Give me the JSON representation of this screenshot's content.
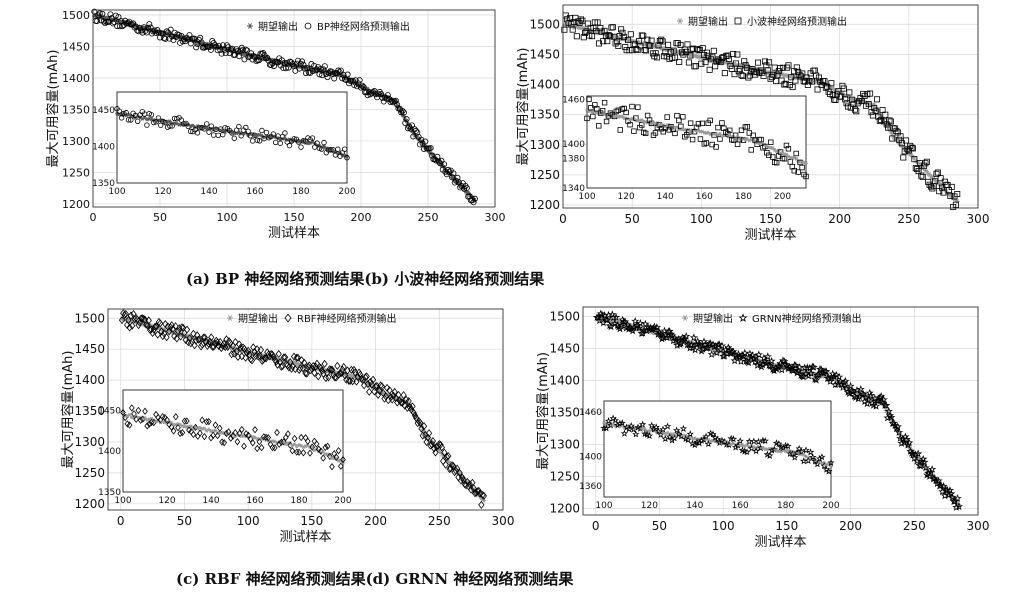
{
  "captions": [
    "(a) BP 神经网络预测结果(b) 小波神经网络预测结果",
    "(c) RBF 神经网络预测结果(d) GRNN 神经网络预测结果"
  ],
  "chart_data": [
    {
      "id": "a",
      "type": "scatter",
      "xlabel": "测试样本",
      "ylabel": "最大可用容量(mAh)",
      "xlim": [
        0,
        300
      ],
      "ylim": [
        1195,
        1508
      ],
      "xticks": [
        0,
        50,
        100,
        150,
        200,
        250,
        300
      ],
      "yticks": [
        1200,
        1250,
        1300,
        1350,
        1400,
        1450,
        1500
      ],
      "grid": true,
      "legend_position": "top-right",
      "series": [
        {
          "name": "期望输出",
          "marker": "asterisk",
          "color": "#555555",
          "x": [
            0,
            285
          ],
          "y": [
            1500,
            1205
          ],
          "keypoints_x": [
            0,
            10,
            40,
            100,
            150,
            185,
            210,
            225,
            240,
            265,
            285
          ],
          "keypoints_y": [
            1500,
            1495,
            1478,
            1445,
            1420,
            1405,
            1375,
            1365,
            1310,
            1250,
            1205
          ]
        },
        {
          "name": "BP神经网络预测输出",
          "marker": "circle",
          "color": "#000000",
          "x_range": [
            2,
            285
          ],
          "noise": 9
        }
      ],
      "inset": {
        "xlim": [
          100,
          200
        ],
        "ylim": [
          1350,
          1475
        ],
        "xticks": [
          100,
          120,
          140,
          160,
          180,
          200
        ],
        "yticks": [
          1350,
          1400,
          1450
        ]
      }
    },
    {
      "id": "b",
      "type": "scatter",
      "xlabel": "测试样本",
      "ylabel": "最大可用容量(mAh)",
      "xlim": [
        0,
        300
      ],
      "ylim": [
        1195,
        1532
      ],
      "xticks": [
        0,
        50,
        100,
        150,
        200,
        250,
        300
      ],
      "yticks": [
        1200,
        1250,
        1300,
        1350,
        1400,
        1450,
        1500
      ],
      "grid": true,
      "legend_position": "top-right",
      "series": [
        {
          "name": "期望输出",
          "marker": "asterisk",
          "color": "#999999",
          "keypoints_x": [
            0,
            10,
            40,
            100,
            150,
            185,
            210,
            225,
            240,
            265,
            285
          ],
          "keypoints_y": [
            1500,
            1495,
            1478,
            1445,
            1420,
            1405,
            1375,
            1365,
            1310,
            1250,
            1205
          ]
        },
        {
          "name": "小波神经网络预测输出",
          "marker": "square",
          "color": "#000000",
          "x_range": [
            2,
            285
          ],
          "noise": 18
        }
      ],
      "inset": {
        "xlim": [
          100,
          212
        ],
        "ylim": [
          1340,
          1465
        ],
        "xticks": [
          100,
          120,
          140,
          160,
          180,
          200
        ],
        "yticks": [
          1340,
          1380,
          1400,
          1460
        ],
        "ytick_labels": [
          "1340",
          "1380",
          "1400",
          "1460"
        ]
      }
    },
    {
      "id": "c",
      "type": "scatter",
      "xlabel": "测试样本",
      "ylabel": "最大可用容量(mAh)",
      "xlim": [
        -10,
        300
      ],
      "ylim": [
        1190,
        1515
      ],
      "xticks": [
        0,
        50,
        100,
        150,
        200,
        250,
        300
      ],
      "yticks": [
        1200,
        1250,
        1300,
        1350,
        1400,
        1450,
        1500
      ],
      "grid": true,
      "legend_position": "top-right",
      "series": [
        {
          "name": "期望输出",
          "marker": "asterisk",
          "color": "#999999",
          "keypoints_x": [
            0,
            10,
            40,
            100,
            150,
            185,
            210,
            225,
            240,
            265,
            285
          ],
          "keypoints_y": [
            1500,
            1495,
            1478,
            1445,
            1420,
            1405,
            1375,
            1365,
            1310,
            1250,
            1205
          ]
        },
        {
          "name": "RBF神经网络预测输出",
          "marker": "diamond",
          "color": "#000000",
          "x_range": [
            2,
            285
          ],
          "noise": 12
        }
      ],
      "inset": {
        "xlim": [
          100,
          200
        ],
        "ylim": [
          1350,
          1475
        ],
        "xticks": [
          100,
          120,
          140,
          160,
          180,
          200
        ],
        "yticks": [
          1350,
          1400,
          1450
        ]
      }
    },
    {
      "id": "d",
      "type": "scatter",
      "xlabel": "测试样本",
      "ylabel": "最大可用容量(mAh)",
      "xlim": [
        -10,
        300
      ],
      "ylim": [
        1190,
        1515
      ],
      "xticks": [
        0,
        50,
        100,
        150,
        200,
        250,
        300
      ],
      "yticks": [
        1200,
        1250,
        1300,
        1350,
        1400,
        1450,
        1500
      ],
      "grid": true,
      "legend_position": "top-right",
      "series": [
        {
          "name": "期望输出",
          "marker": "asterisk",
          "color": "#999999",
          "keypoints_x": [
            0,
            10,
            40,
            100,
            150,
            185,
            210,
            225,
            240,
            265,
            285
          ],
          "keypoints_y": [
            1500,
            1495,
            1478,
            1445,
            1420,
            1405,
            1375,
            1365,
            1310,
            1250,
            1205
          ]
        },
        {
          "name": "GRNN神经网络预测输出",
          "marker": "star",
          "color": "#000000",
          "x_range": [
            2,
            285
          ],
          "noise": 10
        }
      ],
      "inset": {
        "xlim": [
          100,
          200
        ],
        "ylim": [
          1345,
          1475
        ],
        "xticks": [
          100,
          120,
          140,
          160,
          180,
          200
        ],
        "yticks": [
          1360,
          1400,
          1460
        ]
      }
    }
  ]
}
